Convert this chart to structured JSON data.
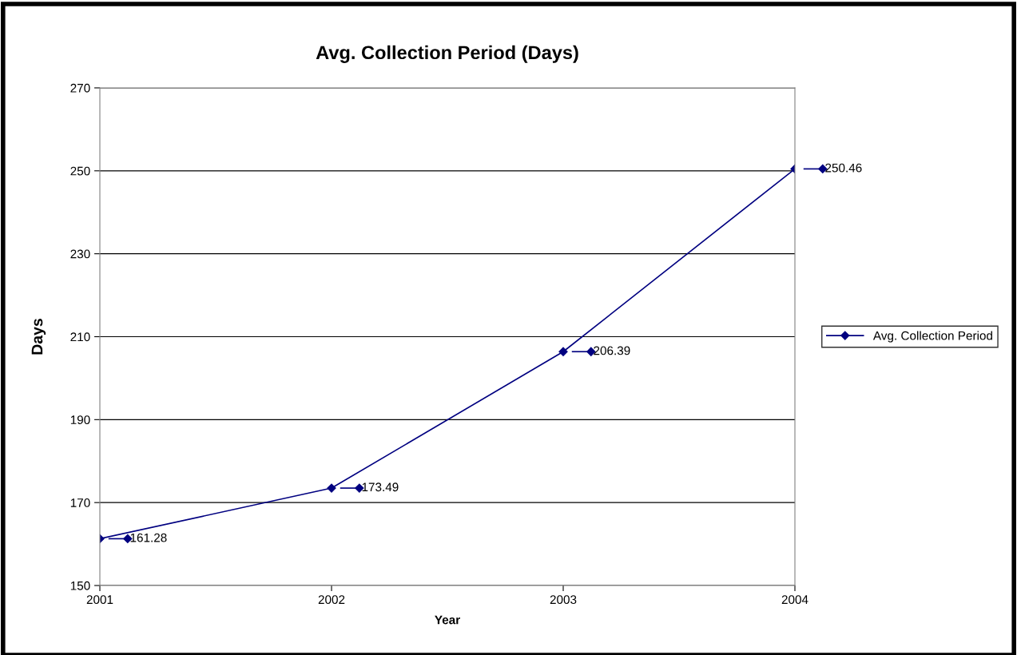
{
  "chart_data": {
    "type": "line",
    "title": "Avg. Collection Period (Days)",
    "xlabel": "Year",
    "ylabel": "Days",
    "categories": [
      "2001",
      "2002",
      "2003",
      "2004"
    ],
    "series": [
      {
        "name": "Avg. Collection Period",
        "color": "#000080",
        "values": [
          161.28,
          173.49,
          206.39,
          250.46
        ]
      }
    ],
    "ylim": [
      150,
      270
    ],
    "yticks": [
      150,
      170,
      190,
      210,
      230,
      250,
      270
    ],
    "grid": "y",
    "legend": "right",
    "marker": "diamond",
    "line_style": "solid",
    "data_labels": true
  }
}
